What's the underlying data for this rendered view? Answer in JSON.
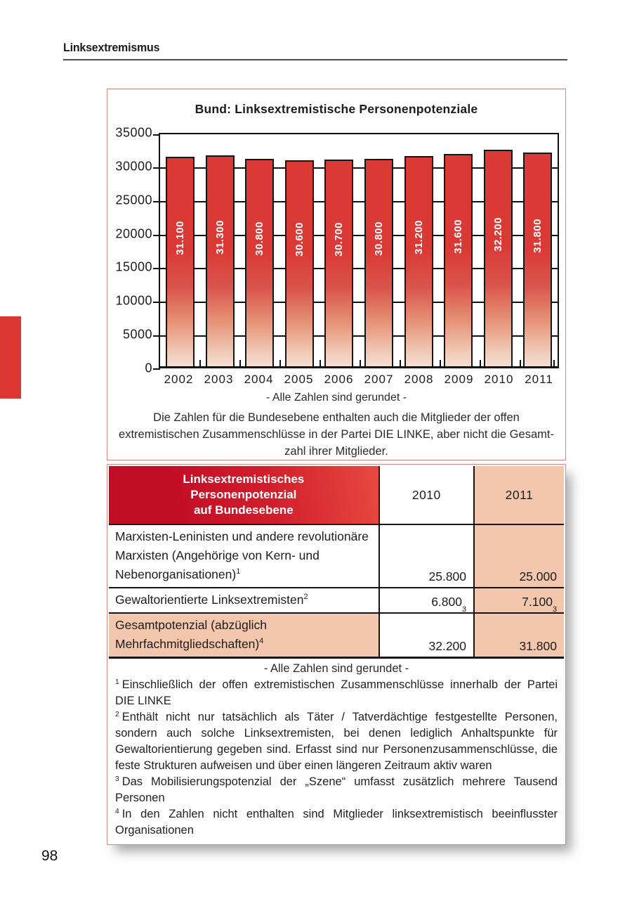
{
  "page": {
    "header": "Linksextremismus",
    "number": "98"
  },
  "chart_box": {
    "title": "Bund: Linksextremistische Personenpotenziale",
    "note": "- Alle Zahlen sind gerundet -",
    "caption_lines": [
      "Die Zahlen für die Bundesebene enthalten auch die Mitglieder der offen",
      "extremistischen Zusammenschlüsse in der Partei DIE LINKE, aber nicht die Gesamt-",
      "zahl ihrer Mitglieder."
    ]
  },
  "chart_data": {
    "type": "bar",
    "title": "Bund: Linksextremistische Personenpotenziale",
    "categories": [
      "2002",
      "2003",
      "2004",
      "2005",
      "2006",
      "2007",
      "2008",
      "2009",
      "2010",
      "2011"
    ],
    "values": [
      31100,
      31300,
      30800,
      30600,
      30700,
      30800,
      31200,
      31600,
      32200,
      31800
    ],
    "bar_labels": [
      "31.100",
      "31.300",
      "30.800",
      "30.600",
      "30.700",
      "30.800",
      "31.200",
      "31.600",
      "32.200",
      "31.800"
    ],
    "xlabel": "",
    "ylabel": "",
    "ylim": [
      0,
      35000
    ],
    "ytick_step": 5000,
    "yticks": [
      "35000",
      "30000",
      "25000",
      "20000",
      "15000",
      "10000",
      "5000",
      "0"
    ],
    "grid": true,
    "legend": null,
    "bar_color": "#db3935",
    "bar_fade_color": "#f4ded1",
    "value_label_color": "#ffffff"
  },
  "table": {
    "header": {
      "title_lines": [
        "Linksextremistisches",
        "Personenpotenzial",
        "auf Bundesebene"
      ],
      "col_2010": "2010",
      "col_2011": "2011"
    },
    "rows": [
      {
        "label": "Marxisten-Leninisten und andere revolutionäre Marxisten (Angehörige von Kern- und Nebenorganisationen)",
        "label_sup": "1",
        "v2010": "25.800",
        "v2010_sup": "",
        "v2011": "25.000",
        "v2011_sup": "",
        "highlight": false
      },
      {
        "label": "Gewaltorientierte Linksextremisten",
        "label_sup": "2",
        "v2010": "6.800",
        "v2010_sup": "3",
        "v2011": "7.100",
        "v2011_sup": "3",
        "highlight": false
      },
      {
        "label": "Gesamtpotenzial (abzüglich Mehrfachmitgliedschaften)",
        "label_sup": "4",
        "v2010": "32.200",
        "v2010_sup": "",
        "v2011": "31.800",
        "v2011_sup": "",
        "highlight": true
      }
    ],
    "note": "- Alle Zahlen sind gerundet -",
    "footnotes": [
      {
        "sup": "1",
        "text": "Einschließlich der offen extremistischen Zusammenschlüsse innerhalb der Partei DIE LINKE"
      },
      {
        "sup": "2",
        "text": "Enthält nicht nur tatsächlich als Täter / Tatverdächtige festgestellte Personen, sondern auch solche Linksextremisten, bei denen lediglich Anhaltspunkte für Gewaltorientierung gegeben sind. Erfasst sind nur Personenzusammenschlüsse, die feste Strukturen aufweisen und über einen längeren Zeitraum aktiv waren"
      },
      {
        "sup": "3",
        "text": "Das Mobilisierungspotenzial der „Szene“ umfasst zusätzlich mehrere Tausend Personen"
      },
      {
        "sup": "4",
        "text": "In den Zahlen nicht enthalten sind Mitglieder linksextremistisch beeinflusster Organisationen"
      }
    ]
  },
  "colors": {
    "accent_red": "#db3935",
    "side_tab_red": "#dc3733",
    "table_header_gradient": [
      "#c30d26",
      "#e74a40"
    ],
    "salmon_cell": "#f2c7ae",
    "box_border_pink": "#dd8680"
  }
}
